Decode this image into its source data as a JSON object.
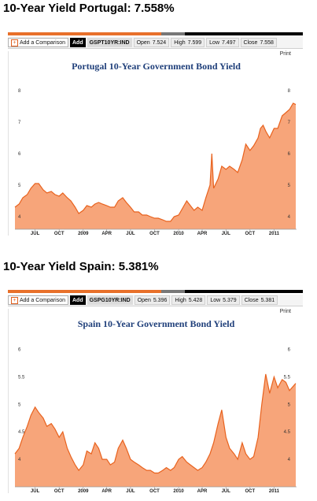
{
  "colors": {
    "fill": "#f7a57a",
    "line": "#e8621e",
    "title": "#1f3f7a",
    "stripe_orange": "#e8702a",
    "stripe_gray": "#777777",
    "stripe_black": "#000000"
  },
  "panels": [
    {
      "heading": "10-Year Yield Portugal: 7.558%",
      "toolbar": {
        "add_comparison": "Add a Comparison",
        "add": "Add",
        "ticker": "GSPT10YR:IND",
        "open_label": "Open",
        "open_value": "7.524",
        "high_label": "High",
        "high_value": "7.599",
        "low_label": "Low",
        "low_value": "7.497",
        "close_label": "Close",
        "close_value": "7.558"
      },
      "print_label": "Print",
      "chart_data": {
        "type": "area",
        "title": "Portugal 10-Year Government Bond Yield",
        "xlabel": "",
        "ylabel": "",
        "x_ticks": [
          "JUL",
          "OCT",
          "2009",
          "APR",
          "JUL",
          "OCT",
          "2010",
          "APR",
          "JUL",
          "OCT",
          "2011"
        ],
        "y_ticks": [
          "4",
          "5",
          "6",
          "7",
          "8"
        ],
        "ylim": [
          3.6,
          8.4
        ],
        "grid": false,
        "x": [
          "2008-04-15",
          "2008-05-01",
          "2008-05-15",
          "2008-06-01",
          "2008-06-15",
          "2008-07-01",
          "2008-07-15",
          "2008-08-01",
          "2008-08-15",
          "2008-09-01",
          "2008-09-15",
          "2008-10-01",
          "2008-10-15",
          "2008-11-01",
          "2008-11-15",
          "2008-12-01",
          "2008-12-15",
          "2009-01-01",
          "2009-01-15",
          "2009-02-01",
          "2009-02-15",
          "2009-03-01",
          "2009-03-15",
          "2009-04-01",
          "2009-04-15",
          "2009-05-01",
          "2009-05-15",
          "2009-06-01",
          "2009-06-15",
          "2009-07-01",
          "2009-07-15",
          "2009-08-01",
          "2009-08-15",
          "2009-09-01",
          "2009-09-15",
          "2009-10-01",
          "2009-10-15",
          "2009-11-01",
          "2009-11-15",
          "2009-12-01",
          "2009-12-15",
          "2010-01-01",
          "2010-01-15",
          "2010-02-01",
          "2010-02-15",
          "2010-03-01",
          "2010-03-15",
          "2010-04-01",
          "2010-04-15",
          "2010-05-01",
          "2010-05-08",
          "2010-05-15",
          "2010-06-01",
          "2010-06-15",
          "2010-07-01",
          "2010-07-15",
          "2010-08-01",
          "2010-08-15",
          "2010-09-01",
          "2010-09-15",
          "2010-10-01",
          "2010-10-15",
          "2010-11-01",
          "2010-11-10",
          "2010-11-20",
          "2010-12-01",
          "2010-12-15",
          "2011-01-01",
          "2011-01-15",
          "2011-02-01",
          "2011-02-15",
          "2011-03-01",
          "2011-03-15",
          "2011-03-25"
        ],
        "series": [
          {
            "values": [
              4.3,
              4.4,
              4.6,
              4.7,
              4.9,
              5.05,
              5.05,
              4.85,
              4.75,
              4.8,
              4.7,
              4.65,
              4.75,
              4.6,
              4.5,
              4.3,
              4.1,
              4.2,
              4.35,
              4.3,
              4.4,
              4.45,
              4.4,
              4.35,
              4.3,
              4.3,
              4.5,
              4.6,
              4.45,
              4.3,
              4.15,
              4.15,
              4.05,
              4.05,
              4.0,
              3.95,
              3.95,
              3.9,
              3.85,
              3.85,
              4.0,
              4.05,
              4.25,
              4.5,
              4.35,
              4.2,
              4.3,
              4.2,
              4.6,
              5.0,
              6.0,
              4.9,
              5.2,
              5.6,
              5.5,
              5.6,
              5.5,
              5.4,
              5.8,
              6.3,
              6.1,
              6.25,
              6.5,
              6.8,
              6.9,
              6.7,
              6.5,
              6.8,
              6.8,
              7.2,
              7.3,
              7.4,
              7.6,
              7.558
            ]
          }
        ]
      }
    },
    {
      "heading": "10-Year Yield Spain: 5.381%",
      "toolbar": {
        "add_comparison": "Add a Comparison",
        "add": "Add",
        "ticker": "GSPG10YR:IND",
        "open_label": "Open",
        "open_value": "5.396",
        "high_label": "High",
        "high_value": "5.428",
        "low_label": "Low",
        "low_value": "5.379",
        "close_label": "Close",
        "close_value": "5.381"
      },
      "print_label": "Print",
      "chart_data": {
        "type": "area",
        "title": "Spain 10-Year Government Bond Yield",
        "xlabel": "",
        "ylabel": "",
        "x_ticks": [
          "JUL",
          "OCT",
          "2009",
          "APR",
          "JUL",
          "OCT",
          "2010",
          "APR",
          "JUL",
          "OCT",
          "2011"
        ],
        "y_ticks": [
          "4",
          "4.5",
          "5",
          "5.5",
          "6"
        ],
        "ylim": [
          3.5,
          6.25
        ],
        "grid": false,
        "x": [
          "2008-04-15",
          "2008-05-01",
          "2008-05-15",
          "2008-06-01",
          "2008-06-15",
          "2008-07-01",
          "2008-07-15",
          "2008-08-01",
          "2008-08-15",
          "2008-09-01",
          "2008-09-15",
          "2008-10-01",
          "2008-10-15",
          "2008-11-01",
          "2008-11-15",
          "2008-12-01",
          "2008-12-15",
          "2009-01-01",
          "2009-01-15",
          "2009-02-01",
          "2009-02-15",
          "2009-03-01",
          "2009-03-15",
          "2009-04-01",
          "2009-04-15",
          "2009-05-01",
          "2009-05-15",
          "2009-06-01",
          "2009-06-15",
          "2009-07-01",
          "2009-07-15",
          "2009-08-01",
          "2009-08-15",
          "2009-09-01",
          "2009-09-15",
          "2009-10-01",
          "2009-10-15",
          "2009-11-01",
          "2009-11-15",
          "2009-12-01",
          "2009-12-15",
          "2010-01-01",
          "2010-01-15",
          "2010-02-01",
          "2010-02-15",
          "2010-03-01",
          "2010-03-15",
          "2010-04-01",
          "2010-04-15",
          "2010-05-01",
          "2010-05-15",
          "2010-06-01",
          "2010-06-15",
          "2010-07-01",
          "2010-07-15",
          "2010-08-01",
          "2010-08-15",
          "2010-09-01",
          "2010-09-15",
          "2010-10-01",
          "2010-10-15",
          "2010-11-01",
          "2010-11-15",
          "2010-11-30",
          "2010-12-15",
          "2011-01-01",
          "2011-01-15",
          "2011-02-01",
          "2011-02-15",
          "2011-03-01",
          "2011-03-25"
        ],
        "series": [
          {
            "values": [
              4.1,
              4.2,
              4.4,
              4.6,
              4.8,
              4.95,
              4.85,
              4.75,
              4.6,
              4.65,
              4.55,
              4.4,
              4.5,
              4.2,
              4.05,
              3.9,
              3.8,
              3.9,
              4.15,
              4.1,
              4.3,
              4.2,
              4.0,
              4.0,
              3.9,
              3.95,
              4.2,
              4.35,
              4.2,
              4.0,
              3.95,
              3.9,
              3.85,
              3.8,
              3.8,
              3.75,
              3.75,
              3.8,
              3.85,
              3.8,
              3.85,
              4.0,
              4.05,
              3.95,
              3.9,
              3.85,
              3.8,
              3.85,
              3.95,
              4.1,
              4.3,
              4.65,
              4.9,
              4.4,
              4.2,
              4.1,
              4.0,
              4.3,
              4.1,
              4.0,
              4.05,
              4.4,
              5.0,
              5.55,
              5.2,
              5.5,
              5.3,
              5.45,
              5.4,
              5.25,
              5.381
            ]
          }
        ]
      }
    }
  ]
}
